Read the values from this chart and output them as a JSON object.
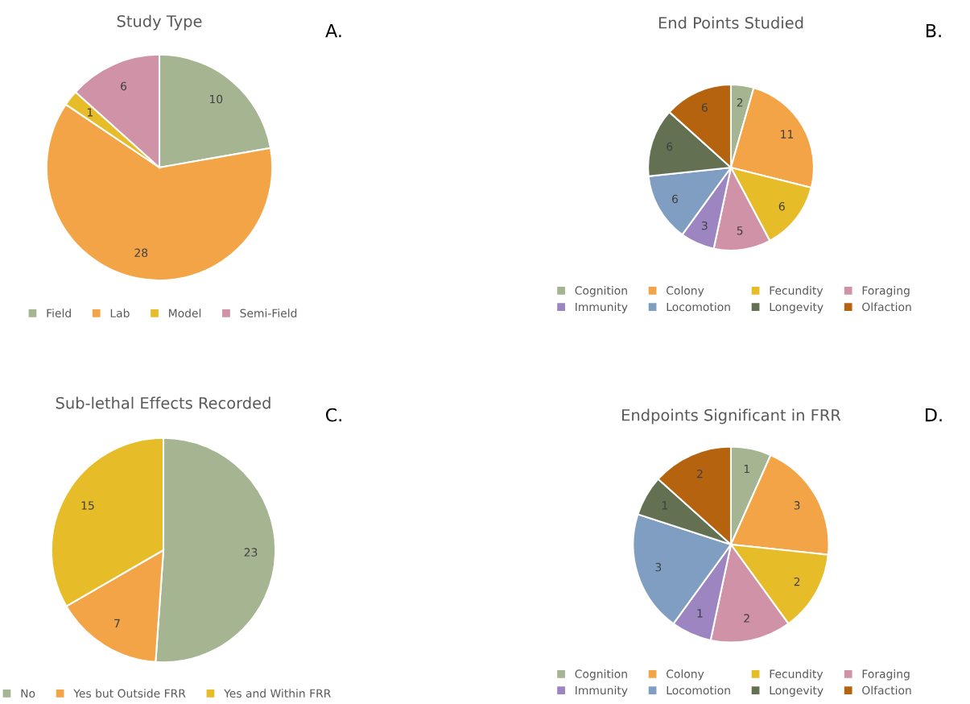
{
  "chart_data": [
    {
      "type": "pie",
      "title": "Study Type",
      "annotations": [
        "A."
      ],
      "categories": [
        "Field",
        "Lab",
        "Model",
        "Semi-Field"
      ],
      "values": [
        10,
        28,
        1,
        6
      ],
      "colors": [
        "#a5b592",
        "#f3a447",
        "#e7bc29",
        "#d092a7"
      ],
      "data_labels": true,
      "legend": "bottom"
    },
    {
      "type": "pie",
      "title": "End Points Studied",
      "annotations": [
        "B."
      ],
      "categories": [
        "Cognition",
        "Colony",
        "Fecundity",
        "Foraging",
        "Immunity",
        "Locomotion",
        "Longevity",
        "Olfaction"
      ],
      "values": [
        2,
        11,
        6,
        5,
        3,
        6,
        6,
        6
      ],
      "colors": [
        "#a5b592",
        "#f3a447",
        "#e7bc29",
        "#d092a7",
        "#9c85c0",
        "#809ec2",
        "#637052",
        "#b5630f"
      ],
      "data_labels": true,
      "legend": "bottom"
    },
    {
      "type": "pie",
      "title": "Sub-lethal Effects Recorded",
      "annotations": [
        "C."
      ],
      "categories": [
        "No",
        "Yes but Outside FRR",
        "Yes and Within FRR"
      ],
      "values": [
        23,
        7,
        15
      ],
      "colors": [
        "#a5b592",
        "#f3a447",
        "#e7bc29"
      ],
      "data_labels": true,
      "legend": "bottom"
    },
    {
      "type": "pie",
      "title": "Endpoints Significant in FRR",
      "annotations": [
        "D."
      ],
      "categories": [
        "Cognition",
        "Colony",
        "Fecundity",
        "Foraging",
        "Immunity",
        "Locomotion",
        "Longevity",
        "Olfaction"
      ],
      "values": [
        1,
        3,
        2,
        2,
        1,
        3,
        1,
        2
      ],
      "colors": [
        "#a5b592",
        "#f3a447",
        "#e7bc29",
        "#d092a7",
        "#9c85c0",
        "#809ec2",
        "#637052",
        "#b5630f"
      ],
      "data_labels": true,
      "legend": "bottom"
    }
  ]
}
